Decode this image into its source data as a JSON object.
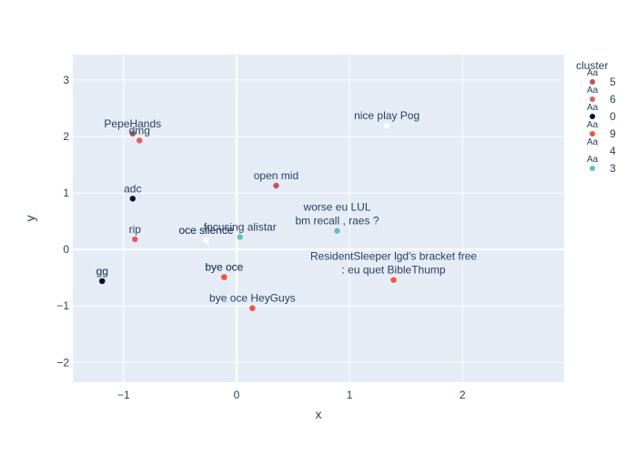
{
  "chart_data": {
    "type": "scatter",
    "xlabel": "x",
    "ylabel": "y",
    "xlim": [
      -1.45,
      2.9
    ],
    "ylim": [
      -2.35,
      3.45
    ],
    "x_ticks": [
      -1,
      0,
      1,
      2
    ],
    "y_ticks": [
      -2,
      -1,
      0,
      1,
      2,
      3
    ],
    "x_tick_labels": [
      "−1",
      "0",
      "1",
      "2"
    ],
    "y_tick_labels": [
      "−2",
      "−1",
      "0",
      "1",
      "2",
      "3"
    ],
    "legend_title": "cluster",
    "legend_placement": "top-right",
    "clusters": [
      {
        "name": "5",
        "color": "#b5585f"
      },
      {
        "name": "6",
        "color": "#e35d5d"
      },
      {
        "name": "0",
        "color": "#0d0f2a"
      },
      {
        "name": "9",
        "color": "#ef553b"
      },
      {
        "name": "4",
        "color": "#ffffff"
      },
      {
        "name": "3",
        "color": "#5ec1be"
      }
    ],
    "points": [
      {
        "x": -0.92,
        "y": 2.05,
        "cluster": "5",
        "label": "PepeHands"
      },
      {
        "x": -0.86,
        "y": 1.93,
        "cluster": "6",
        "label": "dmg"
      },
      {
        "x": -0.92,
        "y": 0.9,
        "cluster": "0",
        "label": "adc"
      },
      {
        "x": -0.9,
        "y": 0.18,
        "cluster": "6",
        "label": "rip"
      },
      {
        "x": -1.19,
        "y": -0.56,
        "cluster": "0",
        "label": "gg"
      },
      {
        "x": -1.19,
        "y": -0.56,
        "cluster": "0",
        "label": "gg"
      },
      {
        "x": -0.27,
        "y": 0.16,
        "cluster": "4",
        "label": "oce silence"
      },
      {
        "x": -0.27,
        "y": 0.16,
        "cluster": "4",
        "label": "oce silence"
      },
      {
        "x": 0.03,
        "y": 0.22,
        "cluster": "3",
        "label": "focusing alistar"
      },
      {
        "x": -0.11,
        "y": -0.49,
        "cluster": "9",
        "label": "bye oce"
      },
      {
        "x": -0.11,
        "y": -0.49,
        "cluster": "9",
        "label": "bye oce"
      },
      {
        "x": 0.14,
        "y": -1.04,
        "cluster": "9",
        "label": "bye oce HeyGuys"
      },
      {
        "x": 0.35,
        "y": 1.13,
        "cluster": "5",
        "label": "open mid"
      },
      {
        "x": 0.89,
        "y": 0.33,
        "cluster": "3",
        "label": [
          "worse eu LUL",
          "bm recall , raes ?"
        ]
      },
      {
        "x": 1.33,
        "y": 2.19,
        "cluster": "4",
        "label": "nice play Pog"
      },
      {
        "x": 1.39,
        "y": -0.54,
        "cluster": "9",
        "label": [
          "ResidentSleeper lgd's bracket free",
          ": eu quet BibleThump"
        ]
      }
    ]
  }
}
